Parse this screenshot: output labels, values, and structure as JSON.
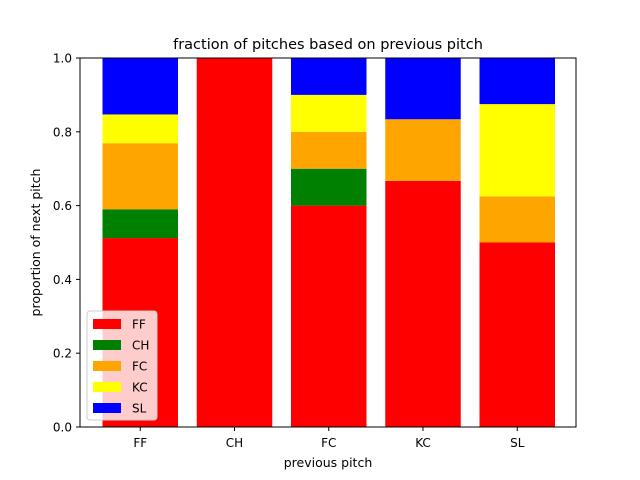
{
  "chart_data": {
    "type": "bar",
    "stacked": true,
    "title": "fraction of pitches based on previous pitch",
    "xlabel": "previous pitch",
    "ylabel": "proportion of next pitch",
    "categories": [
      "FF",
      "CH",
      "FC",
      "KC",
      "SL"
    ],
    "ylim": [
      0,
      1
    ],
    "yticks": [
      "0.0",
      "0.2",
      "0.4",
      "0.6",
      "0.8",
      "1.0"
    ],
    "legend_position": "lower-left",
    "grid": false,
    "series": [
      {
        "name": "FF",
        "color": "#ff0000",
        "values": [
          0.512,
          1.0,
          0.6,
          0.667,
          0.5
        ]
      },
      {
        "name": "CH",
        "color": "#008000",
        "values": [
          0.078,
          0.0,
          0.1,
          0.0,
          0.0
        ]
      },
      {
        "name": "FC",
        "color": "#ffa500",
        "values": [
          0.179,
          0.0,
          0.1,
          0.167,
          0.125
        ]
      },
      {
        "name": "KC",
        "color": "#ffff00",
        "values": [
          0.078,
          0.0,
          0.1,
          0.0,
          0.25
        ]
      },
      {
        "name": "SL",
        "color": "#0000ff",
        "values": [
          0.153,
          0.0,
          0.1,
          0.166,
          0.125
        ]
      }
    ]
  }
}
